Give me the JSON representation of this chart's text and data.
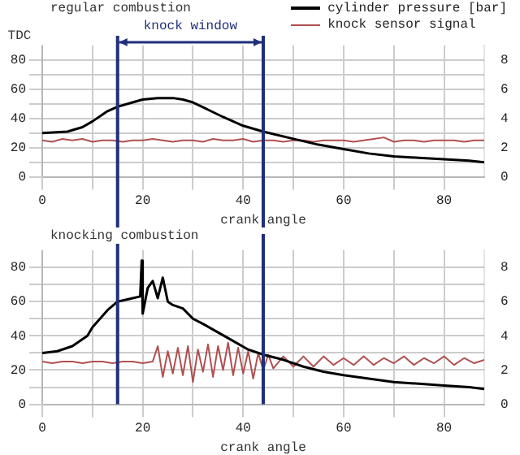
{
  "chart_data": [
    {
      "type": "line",
      "title": "regular combustion",
      "xlabel": "crank angle",
      "annotations": [
        "TDC",
        "knock window"
      ],
      "ref_lines": [
        {
          "axis": "x",
          "value": 15,
          "color": "#1f2f7a"
        },
        {
          "axis": "x",
          "value": 44,
          "color": "#1f2f7a"
        }
      ],
      "xlim": [
        0,
        88
      ],
      "xticks": [
        0,
        {
          "value": 10,
          "label": null
        },
        20,
        {
          "value": 30,
          "label": null
        },
        40,
        {
          "value": 50,
          "label": null
        },
        60,
        {
          "value": 70,
          "label": null
        },
        80
      ],
      "ylim": [
        0,
        90
      ],
      "yticks": [
        0,
        {
          "value": 10,
          "label": null
        },
        20,
        {
          "value": 30,
          "label": null
        },
        40,
        {
          "value": 50,
          "label": null
        },
        60,
        {
          "value": 70,
          "label": null
        },
        80
      ],
      "y2lim": [
        0,
        9
      ],
      "y2ticks": [
        0,
        2,
        4,
        6,
        8
      ],
      "grid": true,
      "legend": "top right",
      "marker": "none",
      "line_style": "solid",
      "series": [
        {
          "name": "cylinder pressure [bar]",
          "color": "#000000",
          "x": [
            0,
            5,
            8,
            10,
            13,
            15,
            18,
            20,
            23,
            26,
            28,
            30,
            33,
            36,
            40,
            44,
            50,
            55,
            60,
            65,
            70,
            75,
            80,
            85,
            88
          ],
          "values": [
            30,
            31,
            34,
            38,
            45,
            48,
            51,
            53,
            54,
            54,
            53,
            51,
            46,
            41,
            35,
            31,
            26,
            22,
            19,
            16,
            14,
            13,
            12,
            11,
            10
          ]
        },
        {
          "name": "knock sensor signal",
          "color": "#b05050",
          "axis": "y2",
          "x": [
            0,
            2,
            4,
            6,
            8,
            10,
            12,
            14,
            16,
            18,
            20,
            22,
            24,
            26,
            28,
            30,
            32,
            34,
            36,
            38,
            40,
            42,
            44,
            46,
            48,
            50,
            52,
            54,
            56,
            58,
            60,
            62,
            64,
            66,
            68,
            70,
            72,
            74,
            76,
            78,
            80,
            82,
            84,
            86,
            88
          ],
          "values": [
            2.5,
            2.4,
            2.6,
            2.5,
            2.6,
            2.4,
            2.5,
            2.5,
            2.4,
            2.5,
            2.5,
            2.6,
            2.5,
            2.4,
            2.5,
            2.5,
            2.4,
            2.6,
            2.5,
            2.5,
            2.6,
            2.4,
            2.5,
            2.5,
            2.4,
            2.5,
            2.5,
            2.4,
            2.5,
            2.5,
            2.5,
            2.4,
            2.5,
            2.6,
            2.7,
            2.4,
            2.5,
            2.5,
            2.4,
            2.5,
            2.5,
            2.5,
            2.4,
            2.5,
            2.5
          ]
        }
      ]
    },
    {
      "type": "line",
      "title": "knocking combustion",
      "xlabel": "crank angle",
      "ref_lines": [
        {
          "axis": "x",
          "value": 15,
          "color": "#1f2f7a"
        },
        {
          "axis": "x",
          "value": 44,
          "color": "#1f2f7a"
        }
      ],
      "xlim": [
        0,
        88
      ],
      "xticks": [
        0,
        {
          "value": 10,
          "label": null
        },
        20,
        {
          "value": 30,
          "label": null
        },
        40,
        {
          "value": 50,
          "label": null
        },
        60,
        {
          "value": 70,
          "label": null
        },
        80
      ],
      "ylim": [
        0,
        90
      ],
      "yticks": [
        0,
        {
          "value": 10,
          "label": null
        },
        20,
        {
          "value": 30,
          "label": null
        },
        40,
        {
          "value": 50,
          "label": null
        },
        60,
        {
          "value": 70,
          "label": null
        },
        80
      ],
      "y2lim": [
        0,
        9
      ],
      "y2ticks": [
        0,
        2,
        4,
        6,
        8
      ],
      "grid": true,
      "legend": false,
      "marker": "none",
      "line_style": "solid",
      "series": [
        {
          "color": "#000000",
          "x": [
            0,
            3,
            6,
            9,
            10,
            13,
            15,
            18,
            19.5,
            19.8,
            20,
            21,
            22,
            23,
            24,
            25,
            26,
            28,
            30,
            32,
            35,
            38,
            41,
            44,
            48,
            52,
            56,
            60,
            65,
            70,
            75,
            80,
            85,
            88
          ],
          "values": [
            30,
            31,
            34,
            40,
            45,
            55,
            60,
            62,
            63,
            84,
            53,
            68,
            72,
            62,
            74,
            60,
            58,
            56,
            50,
            47,
            42,
            37,
            32,
            29,
            26,
            22,
            19,
            17,
            15,
            13,
            12,
            11,
            10,
            9
          ]
        },
        {
          "color": "#b05050",
          "axis": "y2",
          "x": [
            0,
            2,
            4,
            6,
            8,
            10,
            12,
            14,
            16,
            18,
            20,
            22,
            23,
            24,
            25,
            26,
            27,
            28,
            29,
            30,
            31,
            32,
            33,
            34,
            35,
            36,
            37,
            38,
            39,
            40,
            41,
            42,
            43,
            44,
            45,
            46,
            48,
            50,
            52,
            54,
            56,
            58,
            60,
            62,
            64,
            66,
            68,
            70,
            72,
            74,
            76,
            78,
            80,
            82,
            84,
            86,
            88
          ],
          "values": [
            2.5,
            2.4,
            2.5,
            2.5,
            2.4,
            2.5,
            2.5,
            2.4,
            2.5,
            2.5,
            2.4,
            2.5,
            3.4,
            1.6,
            3.1,
            1.8,
            3.3,
            1.7,
            3.4,
            1.3,
            3.2,
            1.9,
            3.5,
            1.6,
            3.4,
            2,
            3.6,
            1.7,
            3.3,
            1.8,
            3.1,
            1.5,
            3,
            2,
            2.9,
            2.1,
            2.8,
            2.2,
            2.8,
            2.2,
            2.8,
            2.3,
            2.7,
            2.3,
            2.8,
            2.3,
            2.7,
            2.4,
            2.8,
            2.3,
            2.7,
            2.4,
            2.8,
            2.3,
            2.7,
            2.4,
            2.6
          ]
        }
      ]
    }
  ]
}
